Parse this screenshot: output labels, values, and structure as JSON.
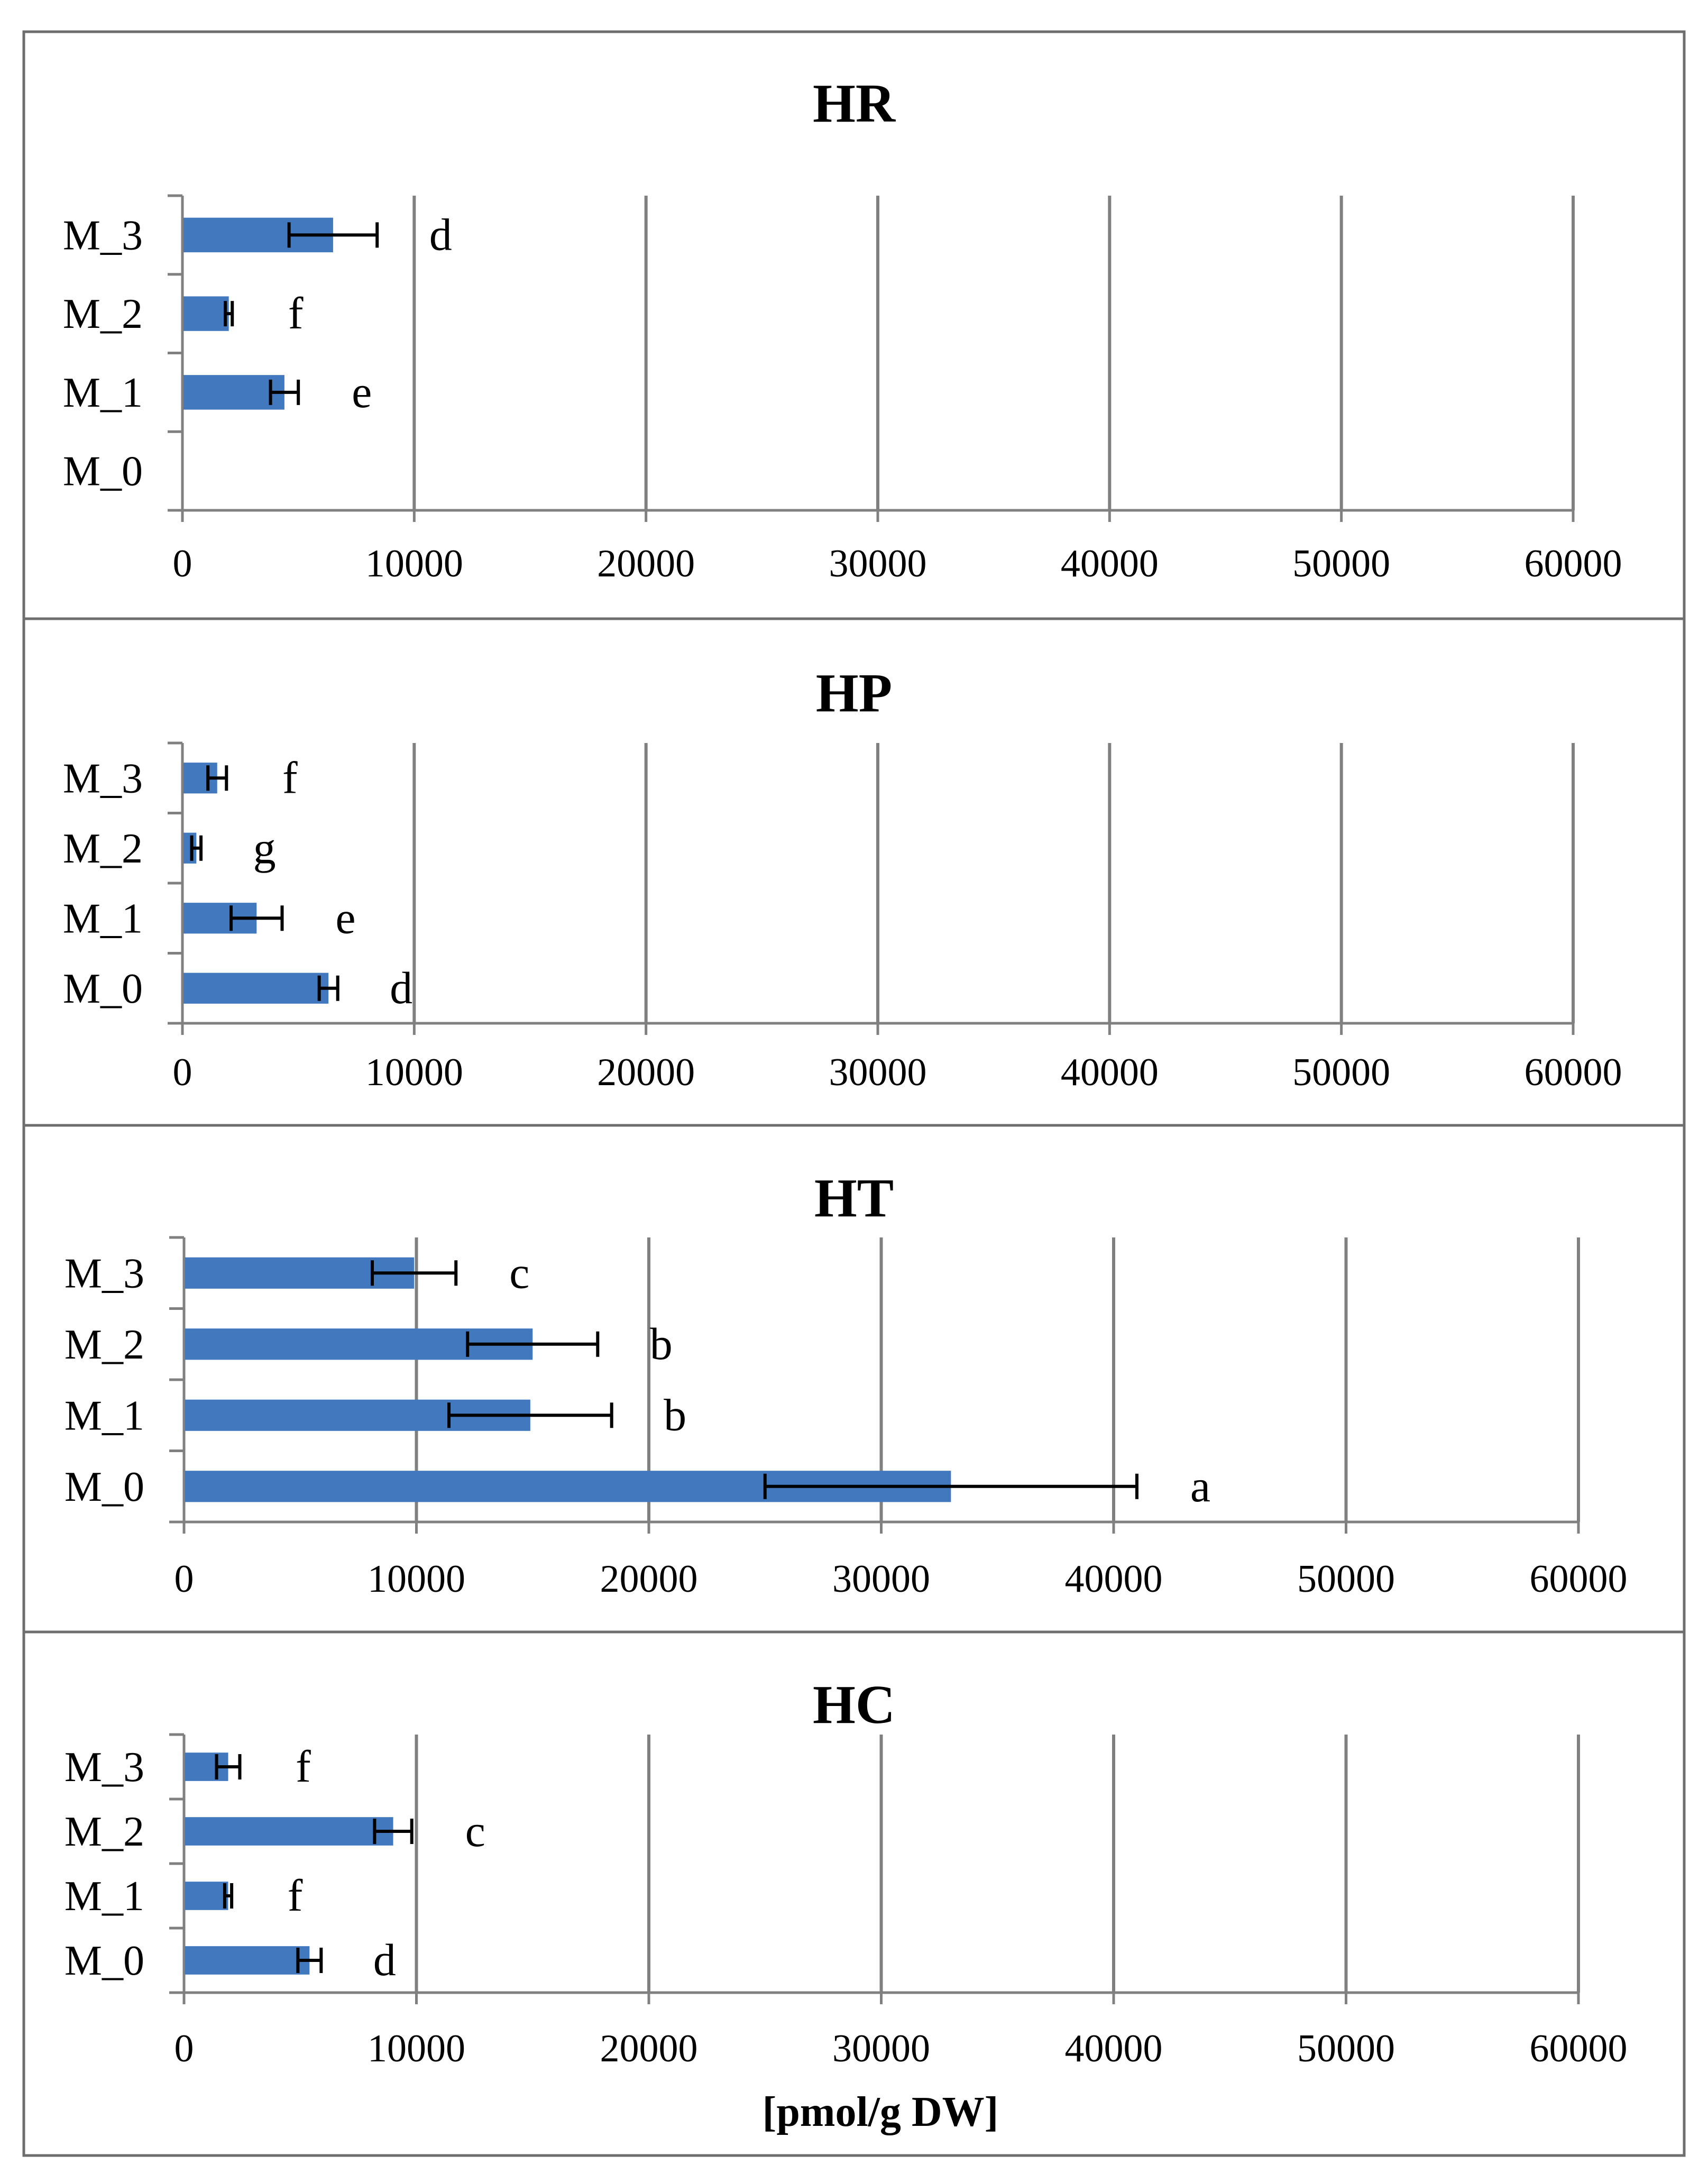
{
  "chart_data": [
    {
      "type": "bar",
      "orientation": "horizontal",
      "title": "HR",
      "categories": [
        "M_0",
        "M_1",
        "M_2",
        "M_3"
      ],
      "values": [
        0,
        4400,
        2000,
        6500
      ],
      "errors": [
        0,
        600,
        150,
        1900
      ],
      "letters": [
        "",
        "e",
        "f",
        "d"
      ],
      "xlim": [
        0,
        60000
      ],
      "xticks": [
        "0",
        "10000",
        "20000",
        "30000",
        "40000",
        "50000",
        "60000"
      ],
      "xlabel": "",
      "grid": "vertical",
      "bar_color": "#4178be"
    },
    {
      "type": "bar",
      "orientation": "horizontal",
      "title": "HP",
      "categories": [
        "M_0",
        "M_1",
        "M_2",
        "M_3"
      ],
      "values": [
        6300,
        3200,
        600,
        1500
      ],
      "errors": [
        400,
        1100,
        200,
        400
      ],
      "letters": [
        "d",
        "e",
        "g",
        "f"
      ],
      "xlim": [
        0,
        60000
      ],
      "xticks": [
        "0",
        "10000",
        "20000",
        "30000",
        "40000",
        "50000",
        "60000"
      ],
      "xlabel": "",
      "grid": "vertical",
      "bar_color": "#4178be"
    },
    {
      "type": "bar",
      "orientation": "horizontal",
      "title": "HT",
      "categories": [
        "M_0",
        "M_1",
        "M_2",
        "M_3"
      ],
      "values": [
        33000,
        14900,
        15000,
        9900
      ],
      "errors": [
        8000,
        3500,
        2800,
        1800
      ],
      "letters": [
        "a",
        "b",
        "b",
        "c"
      ],
      "xlim": [
        0,
        60000
      ],
      "xticks": [
        "0",
        "10000",
        "20000",
        "30000",
        "40000",
        "50000",
        "60000"
      ],
      "xlabel": "",
      "grid": "vertical",
      "bar_color": "#4178be"
    },
    {
      "type": "bar",
      "orientation": "horizontal",
      "title": "HC",
      "categories": [
        "M_0",
        "M_1",
        "M_2",
        "M_3"
      ],
      "values": [
        5400,
        1900,
        9000,
        1900
      ],
      "errors": [
        500,
        150,
        800,
        500
      ],
      "letters": [
        "d",
        "f",
        "c",
        "f"
      ],
      "xlim": [
        0,
        60000
      ],
      "xticks": [
        "0",
        "10000",
        "20000",
        "30000",
        "40000",
        "50000",
        "60000"
      ],
      "xlabel": "[pmol/g DW]",
      "grid": "vertical",
      "bar_color": "#4178be"
    }
  ]
}
